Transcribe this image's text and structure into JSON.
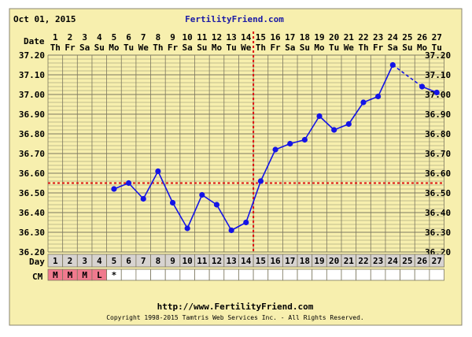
{
  "header": {
    "date": "Oct 01, 2015",
    "site": "FertilityFriend.com"
  },
  "row_labels": {
    "date": "Date",
    "day": "Day",
    "cm": "CM"
  },
  "footer": {
    "url": "http://www.FertilityFriend.com",
    "copyright": "Copyright 1998-2015 Tamtris Web Services Inc. - All Rights Reserved."
  },
  "colors": {
    "background": "#f7efae",
    "grid": "#7d7860",
    "series": "#1414e6",
    "coverline": "#dd1111",
    "cm_menstrual": "#f07a8e",
    "day_row": "#d7d3d0"
  },
  "chart_data": {
    "type": "line",
    "days": [
      1,
      2,
      3,
      4,
      5,
      6,
      7,
      8,
      9,
      10,
      11,
      12,
      13,
      14,
      15,
      16,
      17,
      18,
      19,
      20,
      21,
      22,
      23,
      24,
      25,
      26,
      27
    ],
    "dates": [
      "1",
      "2",
      "3",
      "4",
      "5",
      "6",
      "7",
      "8",
      "9",
      "10",
      "11",
      "12",
      "13",
      "14",
      "15",
      "16",
      "17",
      "18",
      "19",
      "20",
      "21",
      "22",
      "23",
      "24",
      "25",
      "26",
      "27"
    ],
    "weekdays": [
      "Th",
      "Fr",
      "Sa",
      "Su",
      "Mo",
      "Tu",
      "We",
      "Th",
      "Fr",
      "Sa",
      "Su",
      "Mo",
      "Tu",
      "We",
      "Th",
      "Fr",
      "Sa",
      "Su",
      "Mo",
      "Tu",
      "We",
      "Th",
      "Fr",
      "Sa",
      "Su",
      "Mo",
      "Tu"
    ],
    "temperatures": [
      null,
      null,
      null,
      null,
      36.52,
      36.55,
      36.47,
      36.61,
      36.45,
      36.32,
      36.49,
      36.44,
      36.31,
      36.35,
      36.56,
      36.72,
      36.75,
      36.77,
      36.89,
      36.82,
      36.85,
      36.96,
      36.99,
      37.15,
      null,
      37.04,
      37.01
    ],
    "yticks": [
      "37.20",
      "37.10",
      "37.00",
      "36.90",
      "36.80",
      "36.70",
      "36.60",
      "36.50",
      "36.40",
      "36.30",
      "36.20"
    ],
    "ylim": [
      36.2,
      37.2
    ],
    "coverline": 36.55,
    "ovulation_day": 14,
    "grid": true,
    "cervical_mucus": [
      "M",
      "M",
      "M",
      "L",
      "*",
      "",
      "",
      "",
      "",
      "",
      "",
      "",
      "",
      "",
      "",
      "",
      "",
      "",
      "",
      "",
      "",
      "",
      "",
      "",
      "",
      "",
      ""
    ]
  }
}
